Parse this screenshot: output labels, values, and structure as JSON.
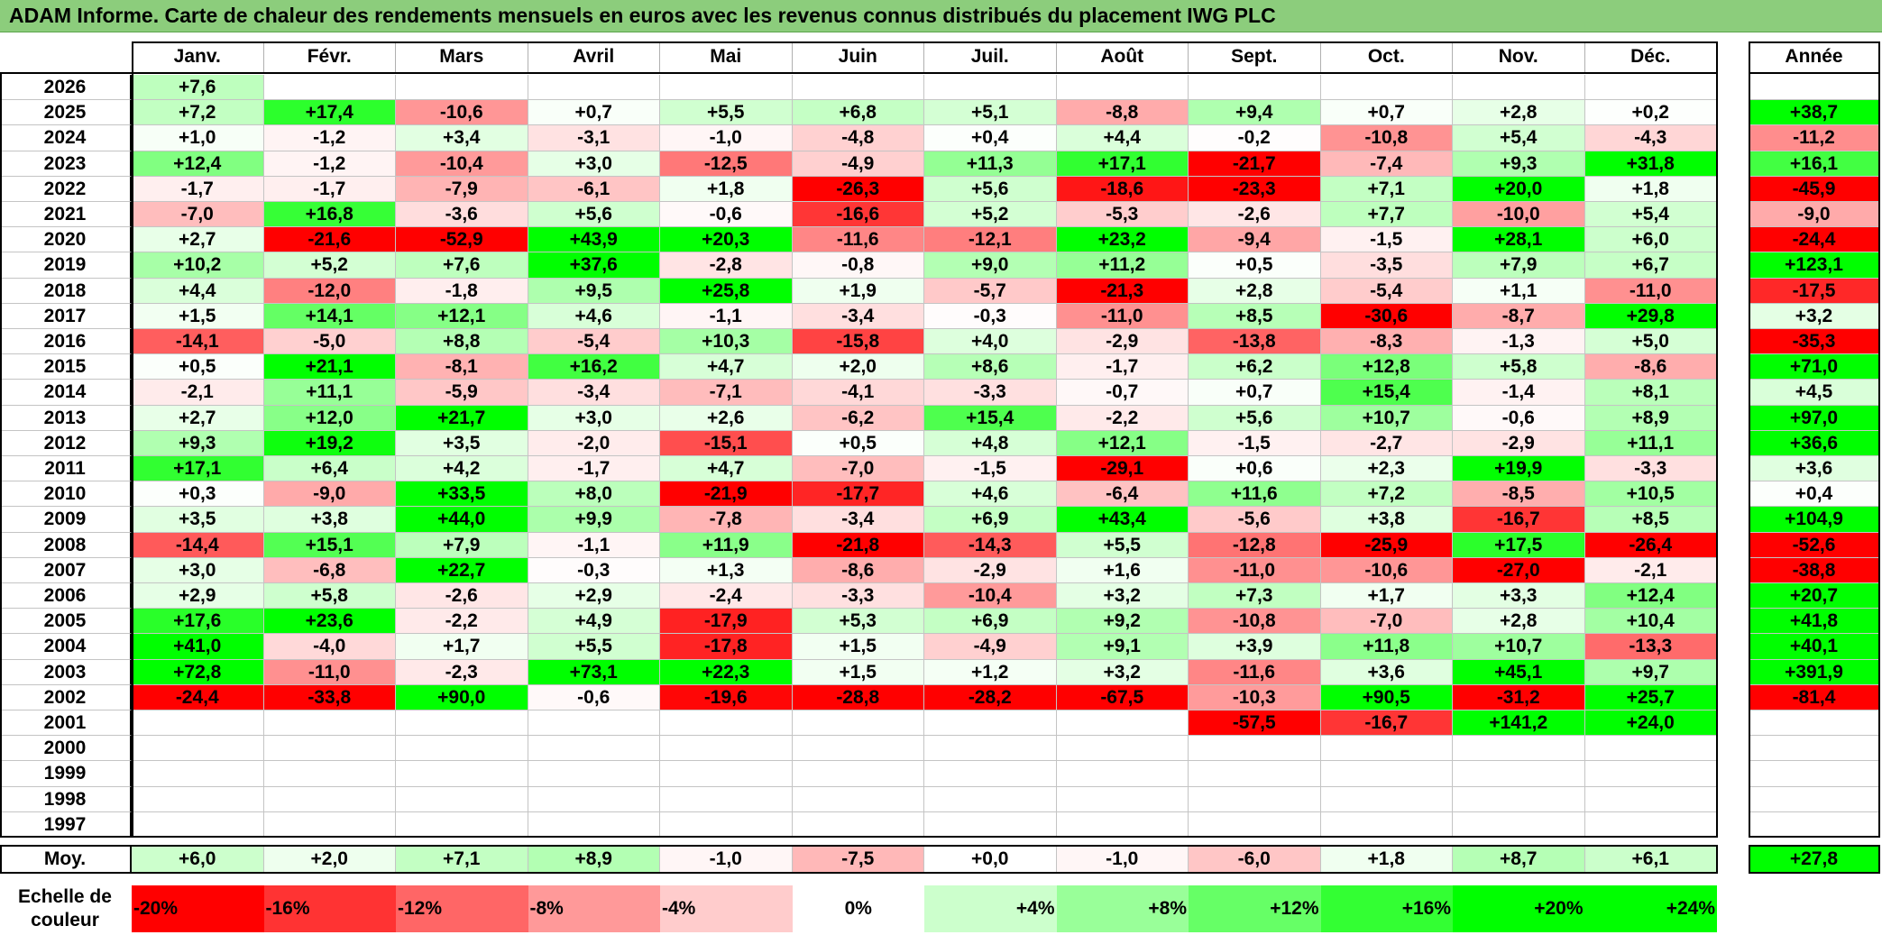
{
  "title": "ADAM Informe. Carte de chaleur des rendements mensuels en euros avec les revenus connus distribués du placement IWG PLC",
  "chart_data": {
    "type": "heatmap",
    "title": "ADAM Informe. Carte de chaleur des rendements mensuels en euros avec les revenus connus distribués du placement IWG PLC",
    "columns": [
      "Janv.",
      "Févr.",
      "Mars",
      "Avril",
      "Mai",
      "Juin",
      "Juil.",
      "Août",
      "Sept.",
      "Oct.",
      "Nov.",
      "Déc."
    ],
    "year_header": "Année",
    "rows": [
      {
        "year": "2026",
        "months": [
          "+7,6",
          "",
          "",
          "",
          "",
          "",
          "",
          "",
          "",
          "",
          "",
          ""
        ],
        "annual": ""
      },
      {
        "year": "2025",
        "months": [
          "+7,2",
          "+17,4",
          "-10,6",
          "+0,7",
          "+5,5",
          "+6,8",
          "+5,1",
          "-8,8",
          "+9,4",
          "+0,7",
          "+2,8",
          "+0,2"
        ],
        "annual": "+38,7"
      },
      {
        "year": "2024",
        "months": [
          "+1,0",
          "-1,2",
          "+3,4",
          "-3,1",
          "-1,0",
          "-4,8",
          "+0,4",
          "+4,4",
          "-0,2",
          "-10,8",
          "+5,4",
          "-4,3"
        ],
        "annual": "-11,2"
      },
      {
        "year": "2023",
        "months": [
          "+12,4",
          "-1,2",
          "-10,4",
          "+3,0",
          "-12,5",
          "-4,9",
          "+11,3",
          "+17,1",
          "-21,7",
          "-7,4",
          "+9,3",
          "+31,8"
        ],
        "annual": "+16,1"
      },
      {
        "year": "2022",
        "months": [
          "-1,7",
          "-1,7",
          "-7,9",
          "-6,1",
          "+1,8",
          "-26,3",
          "+5,6",
          "-18,6",
          "-23,3",
          "+7,1",
          "+20,0",
          "+1,8"
        ],
        "annual": "-45,9"
      },
      {
        "year": "2021",
        "months": [
          "-7,0",
          "+16,8",
          "-3,6",
          "+5,6",
          "-0,6",
          "-16,6",
          "+5,2",
          "-5,3",
          "-2,6",
          "+7,7",
          "-10,0",
          "+5,4"
        ],
        "annual": "-9,0"
      },
      {
        "year": "2020",
        "months": [
          "+2,7",
          "-21,6",
          "-52,9",
          "+43,9",
          "+20,3",
          "-11,6",
          "-12,1",
          "+23,2",
          "-9,4",
          "-1,5",
          "+28,1",
          "+6,0"
        ],
        "annual": "-24,4"
      },
      {
        "year": "2019",
        "months": [
          "+10,2",
          "+5,2",
          "+7,6",
          "+37,6",
          "-2,8",
          "-0,8",
          "+9,0",
          "+11,2",
          "+0,5",
          "-3,5",
          "+7,9",
          "+6,7"
        ],
        "annual": "+123,1"
      },
      {
        "year": "2018",
        "months": [
          "+4,4",
          "-12,0",
          "-1,8",
          "+9,5",
          "+25,8",
          "+1,9",
          "-5,7",
          "-21,3",
          "+2,8",
          "-5,4",
          "+1,1",
          "-11,0"
        ],
        "annual": "-17,5"
      },
      {
        "year": "2017",
        "months": [
          "+1,5",
          "+14,1",
          "+12,1",
          "+4,6",
          "-1,1",
          "-3,4",
          "-0,3",
          "-11,0",
          "+8,5",
          "-30,6",
          "-8,7",
          "+29,8"
        ],
        "annual": "+3,2"
      },
      {
        "year": "2016",
        "months": [
          "-14,1",
          "-5,0",
          "+8,8",
          "-5,4",
          "+10,3",
          "-15,8",
          "+4,0",
          "-2,9",
          "-13,8",
          "-8,3",
          "-1,3",
          "+5,0"
        ],
        "annual": "-35,3"
      },
      {
        "year": "2015",
        "months": [
          "+0,5",
          "+21,1",
          "-8,1",
          "+16,2",
          "+4,7",
          "+2,0",
          "+8,6",
          "-1,7",
          "+6,2",
          "+12,8",
          "+5,8",
          "-8,6"
        ],
        "annual": "+71,0"
      },
      {
        "year": "2014",
        "months": [
          "-2,1",
          "+11,1",
          "-5,9",
          "-3,4",
          "-7,1",
          "-4,1",
          "-3,3",
          "-0,7",
          "+0,7",
          "+15,4",
          "-1,4",
          "+8,1"
        ],
        "annual": "+4,5"
      },
      {
        "year": "2013",
        "months": [
          "+2,7",
          "+12,0",
          "+21,7",
          "+3,0",
          "+2,6",
          "-6,2",
          "+15,4",
          "-2,2",
          "+5,6",
          "+10,7",
          "-0,6",
          "+8,9"
        ],
        "annual": "+97,0"
      },
      {
        "year": "2012",
        "months": [
          "+9,3",
          "+19,2",
          "+3,5",
          "-2,0",
          "-15,1",
          "+0,5",
          "+4,8",
          "+12,1",
          "-1,5",
          "-2,7",
          "-2,9",
          "+11,1"
        ],
        "annual": "+36,6"
      },
      {
        "year": "2011",
        "months": [
          "+17,1",
          "+6,4",
          "+4,2",
          "-1,7",
          "+4,7",
          "-7,0",
          "-1,5",
          "-29,1",
          "+0,6",
          "+2,3",
          "+19,9",
          "-3,3"
        ],
        "annual": "+3,6"
      },
      {
        "year": "2010",
        "months": [
          "+0,3",
          "-9,0",
          "+33,5",
          "+8,0",
          "-21,9",
          "-17,7",
          "+4,6",
          "-6,4",
          "+11,6",
          "+7,2",
          "-8,5",
          "+10,5"
        ],
        "annual": "+0,4"
      },
      {
        "year": "2009",
        "months": [
          "+3,5",
          "+3,8",
          "+44,0",
          "+9,9",
          "-7,8",
          "-3,4",
          "+6,9",
          "+43,4",
          "-5,6",
          "+3,8",
          "-16,7",
          "+8,5"
        ],
        "annual": "+104,9"
      },
      {
        "year": "2008",
        "months": [
          "-14,4",
          "+15,1",
          "+7,9",
          "-1,1",
          "+11,9",
          "-21,8",
          "-14,3",
          "+5,5",
          "-12,8",
          "-25,9",
          "+17,5",
          "-26,4"
        ],
        "annual": "-52,6"
      },
      {
        "year": "2007",
        "months": [
          "+3,0",
          "-6,8",
          "+22,7",
          "-0,3",
          "+1,3",
          "-8,6",
          "-2,9",
          "+1,6",
          "-11,0",
          "-10,6",
          "-27,0",
          "-2,1"
        ],
        "annual": "-38,8"
      },
      {
        "year": "2006",
        "months": [
          "+2,9",
          "+5,8",
          "-2,6",
          "+2,9",
          "-2,4",
          "-3,3",
          "-10,4",
          "+3,2",
          "+7,3",
          "+1,7",
          "+3,3",
          "+12,4"
        ],
        "annual": "+20,7"
      },
      {
        "year": "2005",
        "months": [
          "+17,6",
          "+23,6",
          "-2,2",
          "+4,9",
          "-17,9",
          "+5,3",
          "+6,9",
          "+9,2",
          "-10,8",
          "-7,0",
          "+2,8",
          "+10,4"
        ],
        "annual": "+41,8"
      },
      {
        "year": "2004",
        "months": [
          "+41,0",
          "-4,0",
          "+1,7",
          "+5,5",
          "-17,8",
          "+1,5",
          "-4,9",
          "+9,1",
          "+3,9",
          "+11,8",
          "+10,7",
          "-13,3"
        ],
        "annual": "+40,1"
      },
      {
        "year": "2003",
        "months": [
          "+72,8",
          "-11,0",
          "-2,3",
          "+73,1",
          "+22,3",
          "+1,5",
          "+1,2",
          "+3,2",
          "-11,6",
          "+3,6",
          "+45,1",
          "+9,7"
        ],
        "annual": "+391,9"
      },
      {
        "year": "2002",
        "months": [
          "-24,4",
          "-33,8",
          "+90,0",
          "-0,6",
          "-19,6",
          "-28,8",
          "-28,2",
          "-67,5",
          "-10,3",
          "+90,5",
          "-31,2",
          "+25,7"
        ],
        "annual": "-81,4"
      },
      {
        "year": "2001",
        "months": [
          "",
          "",
          "",
          "",
          "",
          "",
          "",
          "",
          "-57,5",
          "-16,7",
          "+141,2",
          "+24,0"
        ],
        "annual": ""
      },
      {
        "year": "2000",
        "months": [
          "",
          "",
          "",
          "",
          "",
          "",
          "",
          "",
          "",
          "",
          "",
          ""
        ],
        "annual": ""
      },
      {
        "year": "1999",
        "months": [
          "",
          "",
          "",
          "",
          "",
          "",
          "",
          "",
          "",
          "",
          "",
          ""
        ],
        "annual": ""
      },
      {
        "year": "1998",
        "months": [
          "",
          "",
          "",
          "",
          "",
          "",
          "",
          "",
          "",
          "",
          "",
          ""
        ],
        "annual": ""
      },
      {
        "year": "1997",
        "months": [
          "",
          "",
          "",
          "",
          "",
          "",
          "",
          "",
          "",
          "",
          "",
          ""
        ],
        "annual": ""
      }
    ],
    "average": {
      "label": "Moy.",
      "months": [
        "+6,0",
        "+2,0",
        "+7,1",
        "+8,9",
        "-1,0",
        "-7,5",
        "+0,0",
        "-1,0",
        "-6,0",
        "+1,8",
        "+8,7",
        "+6,1"
      ],
      "annual": "+27,8"
    },
    "color_scale": {
      "label": "Echelle de couleur",
      "steps": [
        {
          "label": "-20%",
          "value": -20,
          "color": "#ff0000"
        },
        {
          "label": "-16%",
          "value": -16,
          "color": "#ff3333"
        },
        {
          "label": "-12%",
          "value": -12,
          "color": "#ff6666"
        },
        {
          "label": "-8%",
          "value": -8,
          "color": "#ff9999"
        },
        {
          "label": "-4%",
          "value": -4,
          "color": "#ffcccc"
        },
        {
          "label": "0%",
          "value": 0,
          "color": "#ffffff"
        },
        {
          "label": "+4%",
          "value": 4,
          "color": "#ccffcc"
        },
        {
          "label": "+8%",
          "value": 8,
          "color": "#99ff99"
        },
        {
          "label": "+12%",
          "value": 12,
          "color": "#66ff66"
        },
        {
          "label": "+16%",
          "value": 16,
          "color": "#33ff33"
        },
        {
          "label": "+20%",
          "value": 20,
          "color": "#00ff00"
        },
        {
          "label": "+24%",
          "value": 24,
          "color": "#00ff00"
        }
      ]
    }
  }
}
